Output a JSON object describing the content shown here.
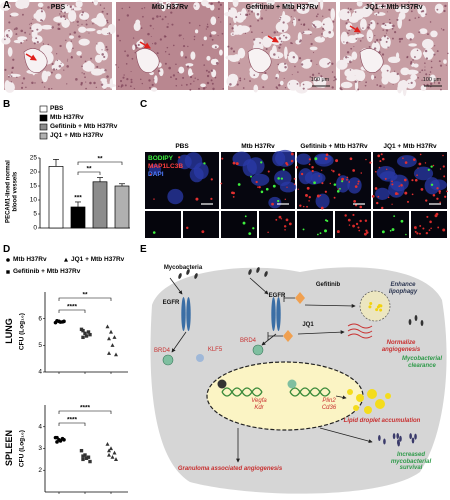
{
  "panel_labels": [
    "A",
    "B",
    "C",
    "D",
    "E"
  ],
  "panel_a": {
    "images": [
      "PBS",
      "Mtb H37Rv",
      "Gefitinib + Mtb H37Rv",
      "JQ1 + Mtb H37Rv"
    ],
    "scale_bars": [
      "100 μm",
      "100 μm"
    ]
  },
  "chart_data": [
    {
      "type": "bar",
      "y_label": "PECAM1-lined normal blood vessels",
      "categories": [
        null
      ],
      "series": [
        {
          "name": "PBS",
          "color": "#ffffff",
          "values": [
            22
          ],
          "errors": [
            2.5
          ]
        },
        {
          "name": "Mtb H37Rv",
          "color": "#000000",
          "values": [
            7.5
          ],
          "errors": [
            1.8
          ]
        },
        {
          "name": "Gefitinib + Mtb H37Rv",
          "color": "#8c8c8c",
          "values": [
            16.5
          ],
          "errors": [
            1.5
          ]
        },
        {
          "name": "JQ1 + Mtb H37Rv",
          "color": "#b0b0b0",
          "values": [
            15
          ],
          "errors": [
            0.8
          ]
        }
      ],
      "ylim": [
        0,
        25
      ],
      "yticks": [
        0,
        5,
        10,
        15,
        20,
        25
      ],
      "annotations": [
        "***",
        "**",
        "**"
      ]
    },
    {
      "type": "scatter",
      "title": "LUNG",
      "y_label": "CFU (Log₁₀)",
      "series": [
        {
          "name": "Mtb H37Rv",
          "marker": "circle",
          "color": "#000000",
          "values": [
            5.85,
            5.9,
            5.88,
            5.92,
            5.87,
            5.9
          ]
        },
        {
          "name": "Gefitinib + Mtb H37Rv",
          "marker": "square",
          "color": "#333333",
          "values": [
            5.6,
            5.45,
            5.5,
            5.3,
            5.35,
            5.4,
            5.55
          ]
        },
        {
          "name": "JQ1 + Mtb H37Rv",
          "marker": "triangle",
          "color": "#333333",
          "values": [
            5.7,
            5.5,
            5.3,
            5.25,
            5.0,
            4.65,
            4.7
          ]
        }
      ],
      "ylim": [
        4,
        7
      ],
      "yticks": [
        4,
        5,
        6
      ],
      "annotations": [
        "****",
        "**"
      ]
    },
    {
      "type": "scatter",
      "title": "SPLEEN",
      "y_label": "CFU (Log₁₀)",
      "series": [
        {
          "marker": "circle",
          "color": "#000000",
          "values": [
            3.5,
            3.4,
            3.45,
            3.3,
            3.35,
            3.4,
            3.5
          ]
        },
        {
          "marker": "square",
          "color": "#333333",
          "values": [
            2.9,
            2.7,
            2.6,
            2.5,
            2.55,
            2.4,
            2.65
          ]
        },
        {
          "marker": "triangle",
          "color": "#333333",
          "values": [
            3.2,
            3.0,
            2.8,
            2.9,
            2.6,
            2.5,
            2.7
          ]
        }
      ],
      "ylim": [
        1,
        5
      ],
      "yticks": [
        2,
        3,
        4
      ],
      "annotations": [
        "****",
        "****"
      ]
    }
  ],
  "panel_c": {
    "legend": [
      "BODIPY",
      "MAP1LC3B",
      "DAPI"
    ],
    "columns": [
      "PBS",
      "Mtb H37Rv",
      "Gefitinib + Mtb H37Rv",
      "JQ1 + Mtb H37Rv"
    ]
  },
  "panel_e": {
    "nodes": [
      "Mycobacteria",
      "EGFR",
      "EGFR",
      "Gefitinib",
      "Enhance lipophagy",
      "JQ1",
      "Normalize angiogenesis",
      "Mycobacterial clearance",
      "BRD4",
      "KLF5",
      "BRD4",
      "Vegfa Kdr",
      "Plin2 Cd36",
      "Lipid droplet accumulation",
      "Granuloma associated angiogenesis",
      "Increased mycobacterial survival"
    ]
  }
}
